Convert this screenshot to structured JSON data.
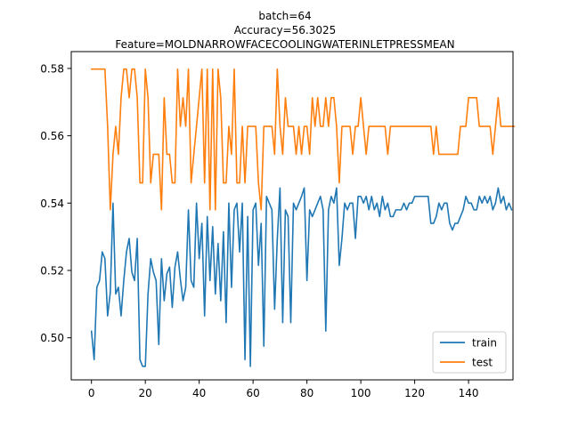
{
  "chart_data": {
    "type": "line",
    "title_lines": [
      "batch=64",
      "Accuracy=56.3025",
      "Feature=MOLDNARROWFACECOOLINGWATERINLETPRESSMEAN"
    ],
    "xlabel": "",
    "ylabel": "",
    "xlim": [
      -7.5,
      156.5
    ],
    "ylim": [
      0.4875,
      0.585
    ],
    "xticks": [
      0,
      20,
      40,
      60,
      80,
      100,
      120,
      140
    ],
    "yticks": [
      0.5,
      0.52,
      0.54,
      0.56,
      0.58
    ],
    "ytick_labels": [
      "0.50",
      "0.52",
      "0.54",
      "0.56",
      "0.58"
    ],
    "grid": false,
    "legend": "lower-right",
    "series": [
      {
        "name": "train",
        "color": "#1f77b4",
        "values": [
          0.502,
          0.4935,
          0.515,
          0.517,
          0.5255,
          0.5235,
          0.5065,
          0.5135,
          0.54,
          0.513,
          0.515,
          0.5065,
          0.517,
          0.5255,
          0.5295,
          0.5195,
          0.517,
          0.5295,
          0.4935,
          0.4915,
          0.4915,
          0.513,
          0.5235,
          0.5195,
          0.517,
          0.498,
          0.5235,
          0.511,
          0.519,
          0.521,
          0.509,
          0.521,
          0.5255,
          0.5175,
          0.511,
          0.515,
          0.538,
          0.517,
          0.515,
          0.54,
          0.5235,
          0.534,
          0.5065,
          0.536,
          0.517,
          0.533,
          0.513,
          0.528,
          0.511,
          0.5315,
          0.5045,
          0.54,
          0.515,
          0.538,
          0.54,
          0.5255,
          0.54,
          0.4935,
          0.536,
          0.4915,
          0.538,
          0.54,
          0.5215,
          0.534,
          0.4975,
          0.542,
          0.54,
          0.538,
          0.5085,
          0.5295,
          0.5445,
          0.5045,
          0.538,
          0.536,
          0.5045,
          0.54,
          0.538,
          0.54,
          0.542,
          0.5445,
          0.517,
          0.538,
          0.536,
          0.538,
          0.54,
          0.542,
          0.538,
          0.502,
          0.538,
          0.542,
          0.54,
          0.5445,
          0.5215,
          0.5295,
          0.54,
          0.538,
          0.54,
          0.54,
          0.5295,
          0.542,
          0.542,
          0.54,
          0.542,
          0.538,
          0.542,
          0.538,
          0.54,
          0.536,
          0.542,
          0.538,
          0.54,
          0.536,
          0.536,
          0.538,
          0.538,
          0.538,
          0.54,
          0.538,
          0.54,
          0.54,
          0.542,
          0.542,
          0.542,
          0.542,
          0.542,
          0.542,
          0.534,
          0.534,
          0.536,
          0.54,
          0.538,
          0.54,
          0.54,
          0.534,
          0.532,
          0.534,
          0.534,
          0.536,
          0.538,
          0.542,
          0.54,
          0.54,
          0.538,
          0.538,
          0.542,
          0.54,
          0.542,
          0.54,
          0.542,
          0.538,
          0.54,
          0.5445,
          0.54,
          0.542,
          0.538,
          0.54,
          0.538
        ]
      },
      {
        "name": "test",
        "color": "#ff7f0e",
        "values": [
          0.5798,
          0.5798,
          0.5798,
          0.5798,
          0.5798,
          0.5798,
          0.5628,
          0.538,
          0.5545,
          0.5628,
          0.5545,
          0.5713,
          0.5798,
          0.5798,
          0.5713,
          0.5798,
          0.5798,
          0.5713,
          0.546,
          0.546,
          0.5798,
          0.5713,
          0.546,
          0.5545,
          0.5545,
          0.5545,
          0.538,
          0.5713,
          0.5545,
          0.5545,
          0.546,
          0.546,
          0.5798,
          0.5628,
          0.5713,
          0.5628,
          0.5798,
          0.546,
          0.5545,
          0.5628,
          0.5713,
          0.5798,
          0.546,
          0.5798,
          0.538,
          0.5798,
          0.538,
          0.5798,
          0.5713,
          0.546,
          0.546,
          0.5628,
          0.5545,
          0.5798,
          0.546,
          0.546,
          0.5628,
          0.546,
          0.5628,
          0.5628,
          0.5628,
          0.5628,
          0.546,
          0.538,
          0.5628,
          0.5628,
          0.5628,
          0.5628,
          0.5545,
          0.5798,
          0.5628,
          0.5545,
          0.5713,
          0.5628,
          0.5628,
          0.5628,
          0.5545,
          0.5628,
          0.5545,
          0.5628,
          0.5628,
          0.5545,
          0.5713,
          0.5628,
          0.5713,
          0.5628,
          0.5628,
          0.5713,
          0.5628,
          0.5713,
          0.5713,
          0.5628,
          0.546,
          0.5628,
          0.5628,
          0.5628,
          0.5628,
          0.5545,
          0.5628,
          0.5628,
          0.5713,
          0.5628,
          0.5545,
          0.5628,
          0.5628,
          0.5628,
          0.5628,
          0.5628,
          0.5628,
          0.5628,
          0.5545,
          0.5628,
          0.5628,
          0.5628,
          0.5628,
          0.5628,
          0.5628,
          0.5628,
          0.5628,
          0.5628,
          0.5628,
          0.5628,
          0.5628,
          0.5628,
          0.5628,
          0.5628,
          0.5628,
          0.5545,
          0.5628,
          0.5545,
          0.5545,
          0.5545,
          0.5545,
          0.5545,
          0.5545,
          0.5545,
          0.5545,
          0.5628,
          0.5628,
          0.5628,
          0.5713,
          0.5713,
          0.5713,
          0.5713,
          0.5628,
          0.5628,
          0.5628,
          0.5628,
          0.5628,
          0.5545,
          0.5628,
          0.5713,
          0.5628,
          0.5628,
          0.5628,
          0.5628,
          0.5628,
          0.5628
        ]
      }
    ]
  }
}
